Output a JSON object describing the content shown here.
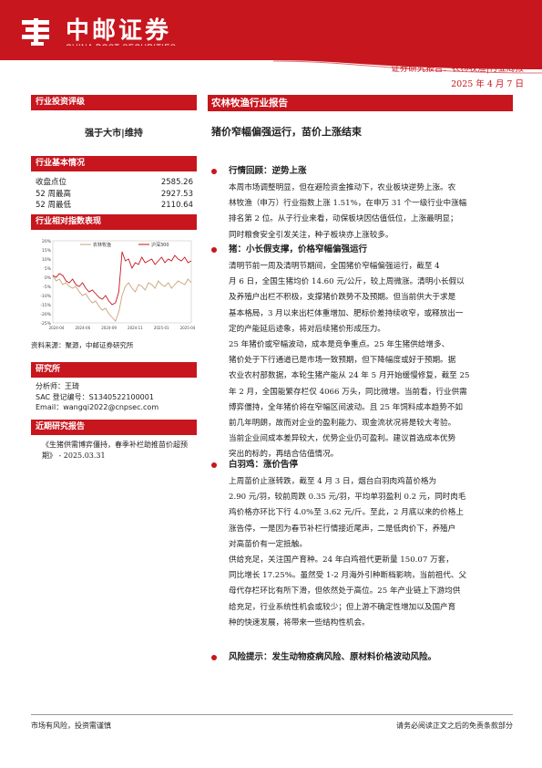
{
  "header": {
    "logo_cn": "中邮证券",
    "logo_en": "CHINA POST SECURITIES",
    "breadcrumb": "证券研究报告：农林牧渔|行业周报",
    "date": "2025 年 4 月 7 日",
    "brand_color": "#c7161e"
  },
  "sidebar": {
    "rating_head": "行业投资评级",
    "rating": "强于大市|维持",
    "basic_head": "行业基本情况",
    "basic": [
      {
        "label": "收盘点位",
        "value": "2585.26"
      },
      {
        "label": "52 周最高",
        "value": "2927.53"
      },
      {
        "label": "52 周最低",
        "value": "2110.64"
      }
    ],
    "perf_head": "行业相对指数表现",
    "source": "资料来源：聚源，中邮证券研究所",
    "analyst_head": "研究所",
    "analyst": [
      "分析师：王琦",
      "SAC 登记编号：S1340522100001",
      "Email：wangqi2022@cnpsec.com"
    ],
    "recent_head": "近期研究报告",
    "recent_text": "《生猪供需博弈僵持，春季补栏助推苗价超预期》 - 2025.03.31"
  },
  "chart_data": {
    "type": "line",
    "series": [
      {
        "name": "农林牧渔",
        "color": "#c7a27a"
      },
      {
        "name": "沪深300",
        "color": "#c7161e"
      }
    ],
    "y_ticks": [
      "20%",
      "15%",
      "10%",
      "5%",
      "0%",
      "-5%",
      "-10%",
      "-15%",
      "-20%",
      "-25%"
    ],
    "x_ticks": [
      "2024-04",
      "2024-06",
      "2024-09",
      "2024-11",
      "2025-01",
      "2025-04"
    ],
    "ylim": [
      -25,
      20
    ],
    "agri": [
      1,
      -2,
      -1,
      -4,
      -3,
      -5,
      -6,
      -5,
      -8,
      -10,
      -9,
      -12,
      -14,
      -13,
      -16,
      -18,
      -17,
      -20,
      -22,
      -24,
      -19,
      -10,
      -5,
      -3,
      -6,
      -8,
      -4,
      -5,
      -7,
      -3,
      -4,
      -6,
      -2,
      -4,
      -5,
      -3,
      -6,
      -4,
      -2,
      -3,
      -4,
      -1,
      -3
    ],
    "hs300": [
      1,
      0,
      2,
      1,
      -2,
      -3,
      -1,
      -4,
      -5,
      -3,
      -6,
      -8,
      -7,
      -9,
      -11,
      -12,
      -10,
      -13,
      -15,
      -14,
      -8,
      14,
      9,
      10,
      5,
      8,
      7,
      11,
      8,
      9,
      10,
      7,
      9,
      11,
      8,
      10,
      9,
      12,
      10,
      9,
      11,
      8,
      9
    ]
  },
  "main": {
    "title_bar": "农林牧渔行业报告",
    "subtitle": "猪价窄幅偏强运行，苗价上涨结束",
    "s1_title": "行情回顾：逆势上涨",
    "s1_lines": [
      "本周市场调整明显，但在避险资金推动下，农业板块逆势上涨。农",
      "林牧渔（申万）行业指数上涨 1.51%，在申万 31 个一级行业中涨幅",
      "排名第 2 位。从子行业来看，动保板块因估值低位，上涨最明显；",
      "同时粮食安全引发关注，种子板块亦上涨较多。"
    ],
    "s2_title": "猪：小长假支撑，价格窄幅偏强运行",
    "s2_lines": [
      "清明节前一周及清明节期间，全国猪价窄幅偏强运行，截至 4",
      "月 6 日，全国生猪均价 14.60 元/公斤，较上周微涨。清明小长假以",
      "及养殖户出栏不积极，支撑猪价跌势不及预期。但当前供大于求是",
      "基本格局，3 月以来出栏体重增加、肥标价差持续收窄，或释放出一",
      "定的产能延后迹象，将对后续猪价形成压力。"
    ],
    "s2b_lines": [
      "25 年猪价或窄幅波动，成本是竞争重点。25 年生猪供给增多、",
      "猪价处于下行通道已是市场一致预期，但下降幅度或好于预期。据",
      "农业农村部数据，本轮生猪产能从 24 年 5 月开始缓慢修复，截至 25",
      "年 2 月，全国能繁存栏仅 4066 万头，同比微增。当前看，行业供需",
      "博弈僵持，全年猪价将在窄幅区间波动。且 25 年饲料成本趋势不如",
      "前几年明朗，故而对企业的盈利能力、现金流状况将是较大考验。",
      "当前企业间成本差异较大，优势企业仍可盈利。建议首选成本优势",
      "突出的标的，再结合估值情况。"
    ],
    "s3_title": "白羽鸡：涨价告停",
    "s3_lines": [
      "上周苗价止涨转跌，截至 4 月 3 日，烟台白羽肉鸡苗价格为",
      "2.90 元/羽，较前周跌 0.35 元/羽，平均单羽盈利 0.2 元，同时肉毛",
      "鸡价格亦环比下行 4.0%至 3.62 元/斤。至此，2 月底以来的价格上",
      "涨告停，一是因为春节补栏行情接近尾声，二是低肉价下，养殖户",
      "对高苗价有一定抵触。"
    ],
    "s3b_lines": [
      "供给充足，关注国产育种。24 年白鸡祖代更新量 150.07 万套，",
      "同比增长 17.25%。虽然受 1-2 月海外引种断档影响，当前祖代、父",
      "母代存栏环比有所下滑，但依然处于高位。25 年产业链上下游均供",
      "给充足，行业系统性机会或较少；但上游不确定性增加以及国产育",
      "种的快速发展，将带来一些结构性机会。"
    ],
    "risk": "风险提示：发生动物疫病风险、原材料价格波动风险。"
  },
  "footer": {
    "left": "市场有风险，投资需谨慎",
    "right": "请务必阅读正文之后的免责条款部分"
  }
}
